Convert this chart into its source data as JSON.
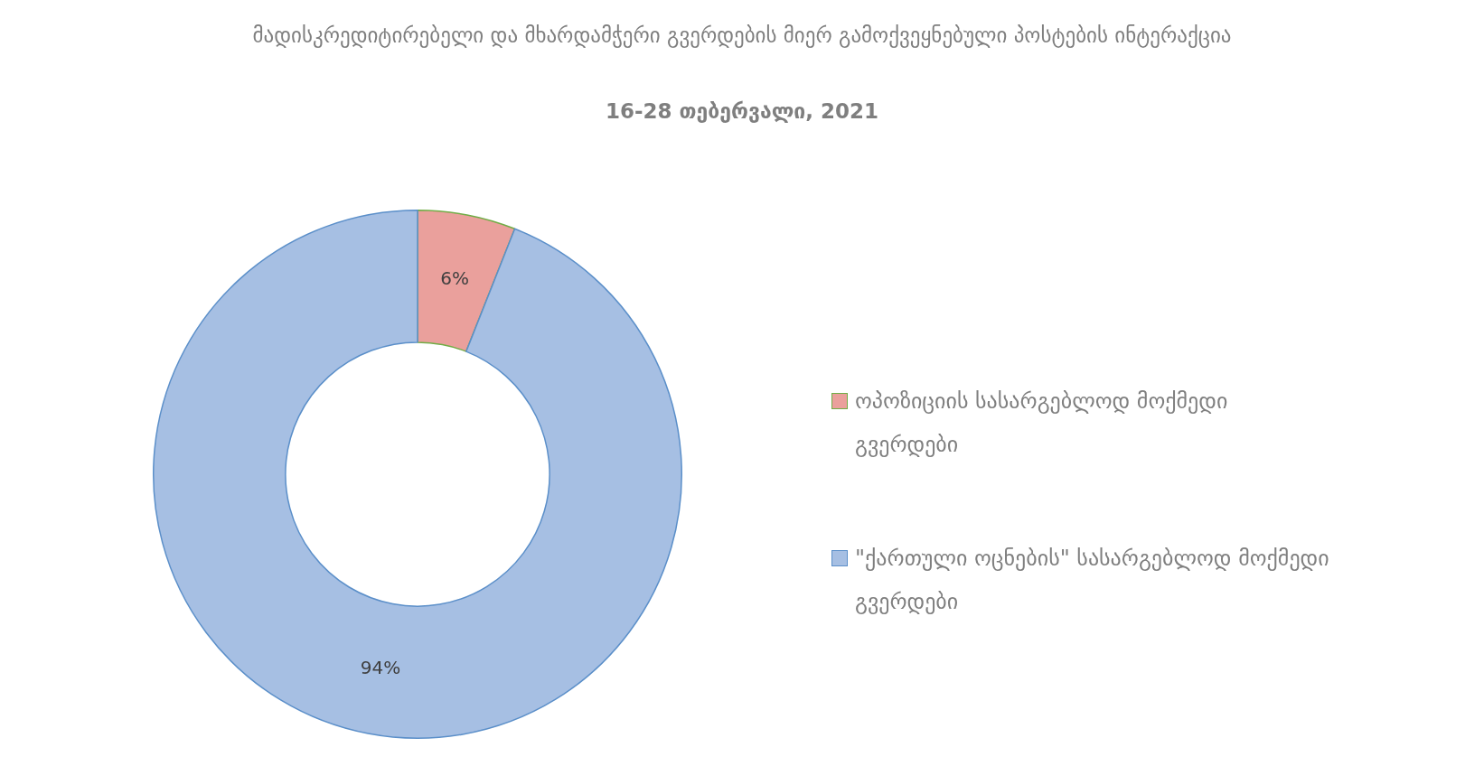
{
  "chart_data": {
    "type": "donut",
    "title": "მადისკრედიტირებელი და მხარდამჭერი გვერდების მიერ გამოქვეყნებული პოსტების ინტერაქცია",
    "subtitle": "16-28 თებერვალი, 2021",
    "categories": [
      "ოპოზიციის სასარგებლოდ მოქმედი გვერდები",
      "\"ქართული ოცნების\" სასარგებლოდ მოქმედი გვერდები"
    ],
    "values": [
      6,
      94
    ],
    "value_labels": [
      "6%",
      "94%"
    ],
    "colors": [
      "#eaa09c",
      "#a6bfe3"
    ],
    "legend": "right"
  }
}
